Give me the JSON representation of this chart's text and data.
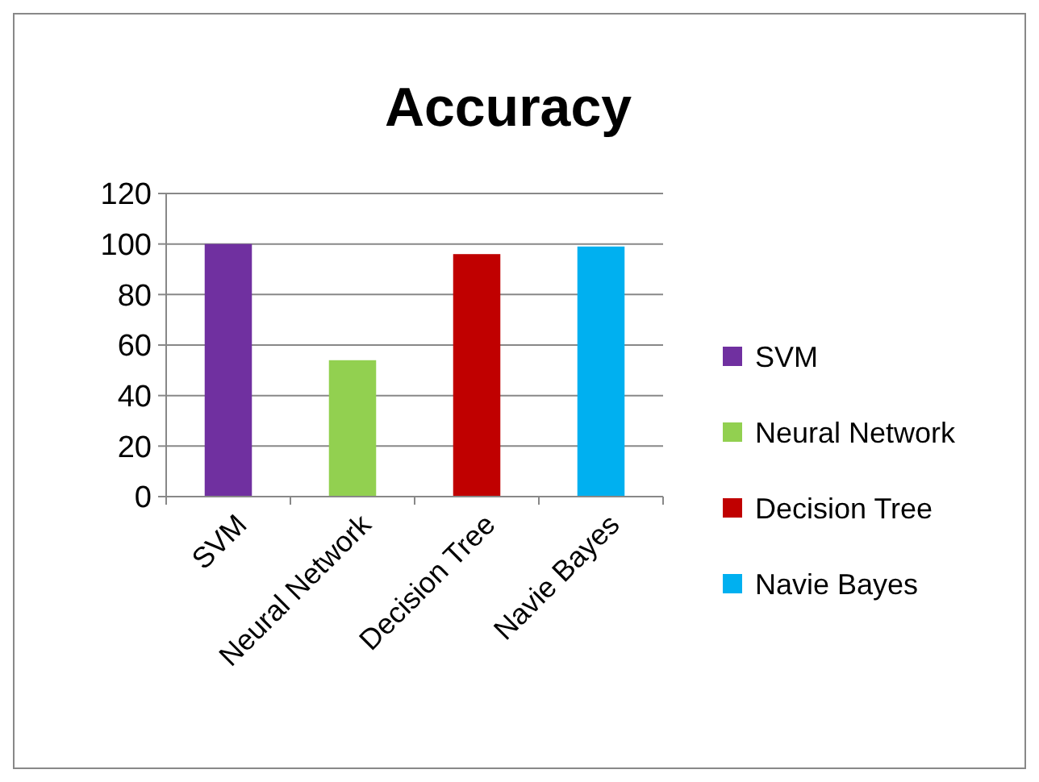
{
  "chart_data": {
    "type": "bar",
    "title": "Accuracy",
    "categories": [
      "SVM",
      "Neural Network",
      "Decision Tree",
      "Navie Bayes"
    ],
    "series": [
      {
        "name": "SVM",
        "color": "#7030a0",
        "values": [
          100,
          null,
          null,
          null
        ]
      },
      {
        "name": "Neural Network",
        "color": "#92d050",
        "values": [
          null,
          54,
          null,
          null
        ]
      },
      {
        "name": "Decision Tree",
        "color": "#c00000",
        "values": [
          null,
          null,
          96,
          null
        ]
      },
      {
        "name": "Navie Bayes",
        "color": "#00b0f0",
        "values": [
          null,
          null,
          null,
          99
        ]
      }
    ],
    "ylim": [
      0,
      120
    ],
    "yticks": [
      0,
      20,
      40,
      60,
      80,
      100,
      120
    ],
    "grid": "y",
    "legend": "right"
  }
}
